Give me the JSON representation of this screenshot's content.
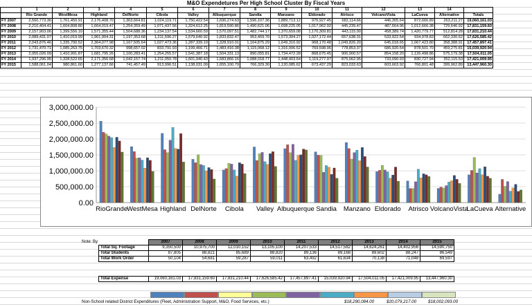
{
  "title": "M&O Expendetures Per High School Cluster By Fiscal Years",
  "top_table": {
    "col_numbers": [
      "1",
      "2",
      "3",
      "4",
      "5",
      "6",
      "7",
      "8",
      "9",
      "10",
      "11",
      "12",
      "13",
      "14"
    ],
    "clusters": [
      "Rio Grande",
      "WestMesa",
      "Highland",
      "DelNorte",
      "Cibola",
      "Valley",
      "Albuquerque",
      "Sandia",
      "Manzano",
      "Eldorado",
      "Atrisco",
      "VolcanoVista",
      "LaCueva",
      "Alternative"
    ],
    "totals_header": "Totals",
    "rows": [
      {
        "label": "FY 2007",
        "values": [
          "2,560,773.36",
          "1,761,450.91",
          "2,176,408.70",
          "1,363,664.81",
          "1,024,119.71",
          "1,750,422.54",
          "1,696,274.63",
          "1,596,107.36",
          "1,889,713.12",
          "976,927.45",
          "682,114.66",
          "446,305.64",
          "872,666.89",
          "263,211.27"
        ],
        "total": "19,060,161.03"
      },
      {
        "label": "FY 2008",
        "values": [
          "2,210,404.41",
          "1,604,808.80",
          "1,664,019.47",
          "1,254,359.49",
          "1,071,437.56",
          "1,324,612.25",
          "1,819,590.86",
          "1,490,621.06",
          "1,698,225.05",
          "1,017,962.92",
          "445,239.47",
          "487,564.96",
          "1,012,666.38",
          "729,646.92"
        ],
        "total": "17,831,159.60"
      },
      {
        "label": "FY 2009",
        "values": [
          "2,157,903.06",
          "1,399,556.10",
          "1,571,355.44",
          "1,504,688.36",
          "1,234,137.54",
          "1,534,660.59",
          "1,570,097.51",
          "1,482,744.17",
          "1,370,659.08",
          "1,170,309.81",
          "443,115.00",
          "458,389.74",
          "1,420,779.77",
          "512,814.28"
        ],
        "total": "17,831,210.44"
      },
      {
        "label": "FY 2010",
        "values": [
          "2,089,431.07",
          "1,410,019.99",
          "1,961,904.31",
          "1,197,353.68",
          "1,211,596.27",
          "1,579,640.92",
          "1,833,832.47",
          "953,459.70",
          "1,573,304.27",
          "1,027,172.44",
          "657,638.31",
          "533,922.54",
          "934,978.83",
          "662,330.62"
        ],
        "total": "17,626,585.42"
      },
      {
        "label": "FY 2011",
        "values": [
          "2,043,876.46",
          "1,335,700.52",
          "2,364,077.98",
          "1,167,505.64",
          "1,027,473.36",
          "1,287,339.19",
          "1,328,910.01",
          "1,164,875.29",
          "1,649,310.92",
          "968,170.48",
          "1,049,826.20",
          "645,018.65",
          "1,067,423.80",
          "358,388.91"
        ],
        "total": "17,457,897.41"
      },
      {
        "label": "FY 2012",
        "values": [
          "1,731,470.71",
          "1,085,263.75",
          "1,703,670.32",
          "998,657.02",
          "833,791.93",
          "1,199,466.71",
          "1,483,416.38",
          "1,115,068.12",
          "1,316,006.52",
          "769,598.06",
          "778,853.37",
          "686,920.54",
          "878,501.70",
          "459,275.81"
        ],
        "total": "15,039,920.94"
      },
      {
        "label": "FY 2013",
        "values": [
          "2,055,026.09",
          "1,410,991.87",
          "1,681,795.26",
          "1,100,283.41",
          "1,254,255.57",
          "1,541,387.18",
          "1,504,331.13",
          "890,055.81",
          "1,734,472.28",
          "868,675.45",
          "906,900.57",
          "854,158.20",
          "1,126,498.86",
          "575,179.38"
        ],
        "total": "17,504,011.05"
      },
      {
        "label": "FY 2014",
        "values": [
          "1,937,296.95",
          "1,328,522.65",
          "2,171,356.68",
          "1,042,157.74",
          "1,211,050.78",
          "1,601,940.43",
          "1,683,866.16",
          "1,088,018.77",
          "1,448,403.64",
          "1,119,277.97",
          "875,062.95",
          "733,090.93",
          "830,727.94",
          "352,115.53"
        ],
        "total": "17,421,009.95"
      },
      {
        "label": "FY 2015",
        "values": [
          "1,588,061.04",
          "980,861.60",
          "1,277,137.66",
          "741,457.49",
          "913,996.51",
          "1,138,031.09",
          "1,655,100.79",
          "766,329.30",
          "1,120,085.62",
          "673,437.29",
          "823,033.63",
          "603,663.92",
          "766,801.48",
          "399,962.89"
        ],
        "total": "13,447,960.30"
      }
    ]
  },
  "chart_data": {
    "type": "bar",
    "categories": [
      "RioGrande",
      "WestMesa",
      "Highland",
      "DelNorte",
      "Cibola",
      "Valley",
      "Albuquerque",
      "Sandia",
      "Manzano",
      "Eldorado",
      "Atrisco",
      "VolcanoVista",
      "LaCueva",
      "Alternative"
    ],
    "ylim": [
      0,
      3000000
    ],
    "yticks": [
      "0.00",
      "500,000.00",
      "1,000,000.00",
      "1,500,000.00",
      "2,000,000.00",
      "2,500,000.00",
      "3,000,000.00"
    ],
    "grid": true,
    "legend": "none",
    "series": [
      {
        "color": "#4f81bd",
        "values": [
          2560773,
          1761451,
          2176409,
          1363665,
          1024120,
          1750423,
          1696275,
          1596107,
          1889713,
          976927,
          682115,
          446306,
          872667,
          263211
        ]
      },
      {
        "color": "#c0504d",
        "values": [
          2210404,
          1604809,
          1664019,
          1254359,
          1071438,
          1324612,
          1819591,
          1490621,
          1698225,
          1017963,
          445239,
          487565,
          1012666,
          729647
        ]
      },
      {
        "color": "#9bbb59",
        "values": [
          2157903,
          1399556,
          1571355,
          1504688,
          1234138,
          1534661,
          1570098,
          1482744,
          1370659,
          1170310,
          443115,
          458390,
          1420780,
          512814
        ]
      },
      {
        "color": "#8064a2",
        "values": [
          2089431,
          1410020,
          1961904,
          1197354,
          1211596,
          1579641,
          1833832,
          953460,
          1573304,
          1027172,
          657638,
          533923,
          934979,
          662331
        ]
      },
      {
        "color": "#4bacc6",
        "values": [
          2043876,
          1335701,
          2364078,
          1167506,
          1027473,
          1287339,
          1328910,
          1164875,
          1649311,
          968170,
          1049826,
          645019,
          1067424,
          358389
        ]
      },
      {
        "color": "#f79646",
        "values": [
          1731471,
          1085264,
          1703670,
          998657,
          833792,
          1199467,
          1483416,
          1115068,
          1316007,
          769598,
          778853,
          686921,
          878502,
          459276
        ]
      },
      {
        "color": "#2c4d75",
        "values": [
          2055026,
          1410992,
          1681795,
          1100283,
          1254256,
          1541387,
          1504331,
          890056,
          1734472,
          868675,
          906901,
          854158,
          1126499,
          575179
        ]
      },
      {
        "color": "#772c2a",
        "values": [
          1937297,
          1328523,
          2171357,
          1042158,
          1211051,
          1601940,
          1683866,
          1088019,
          1448404,
          1119278,
          875063,
          733091,
          830728,
          352116
        ]
      },
      {
        "color": "#5f7530",
        "values": [
          1588061,
          980862,
          1277138,
          741457,
          913997,
          1138031,
          1655101,
          766329,
          1120086,
          673437,
          823034,
          603664,
          766801,
          399963
        ]
      }
    ]
  },
  "note": "Note: By Fiscal Year",
  "stats": {
    "years": [
      "2007",
      "2008",
      "2009",
      "2010",
      "2011",
      "2012",
      "2013",
      "2014",
      "2015"
    ],
    "rows": [
      {
        "label": "Total  Sq. Footage",
        "values": [
          "9,350,500",
          "10,975,700",
          "12,010,152",
          "13,105,100",
          "14,207,533",
          "14,517,582",
          "14,624,261",
          "14,402,956",
          "14,590,750"
        ]
      },
      {
        "label": "Total  Students",
        "values": [
          "87,805",
          "88,821",
          "85,689",
          "88,820",
          "89,136",
          "89,168",
          "89,602",
          "88,247",
          "86,549"
        ]
      },
      {
        "label": "Total  Work Order",
        "values": [
          "50,104",
          "54,681",
          "59,287",
          "59,011",
          "63,492",
          "61,634",
          "70,138",
          "71,048",
          "69,597"
        ]
      }
    ]
  },
  "expense": {
    "label": "Total   Expense",
    "values": [
      "19,060,161.03",
      "17,831,159.60",
      "17,831,210.44",
      "17,626,585.42",
      "17,457,897.41",
      "15,039,920.94",
      "17,504,011.05",
      "17,421,009.95",
      "13,447,960.30"
    ]
  },
  "swatch_colors": [
    "#4f81bd",
    "#c0504d",
    "#ffff99",
    "#9bbb59",
    "#8064a2",
    "#4bacc6",
    "#f79646",
    "#b9cde5",
    "#d7e4bd"
  ],
  "non_school": {
    "label": "Non-School related District Expenditures (Fleet, Administration Support, M&O, Food Services, etc.)",
    "values": [
      "$18,290,084.00",
      "$20,079,217.00",
      "$18,002,093.00"
    ]
  }
}
